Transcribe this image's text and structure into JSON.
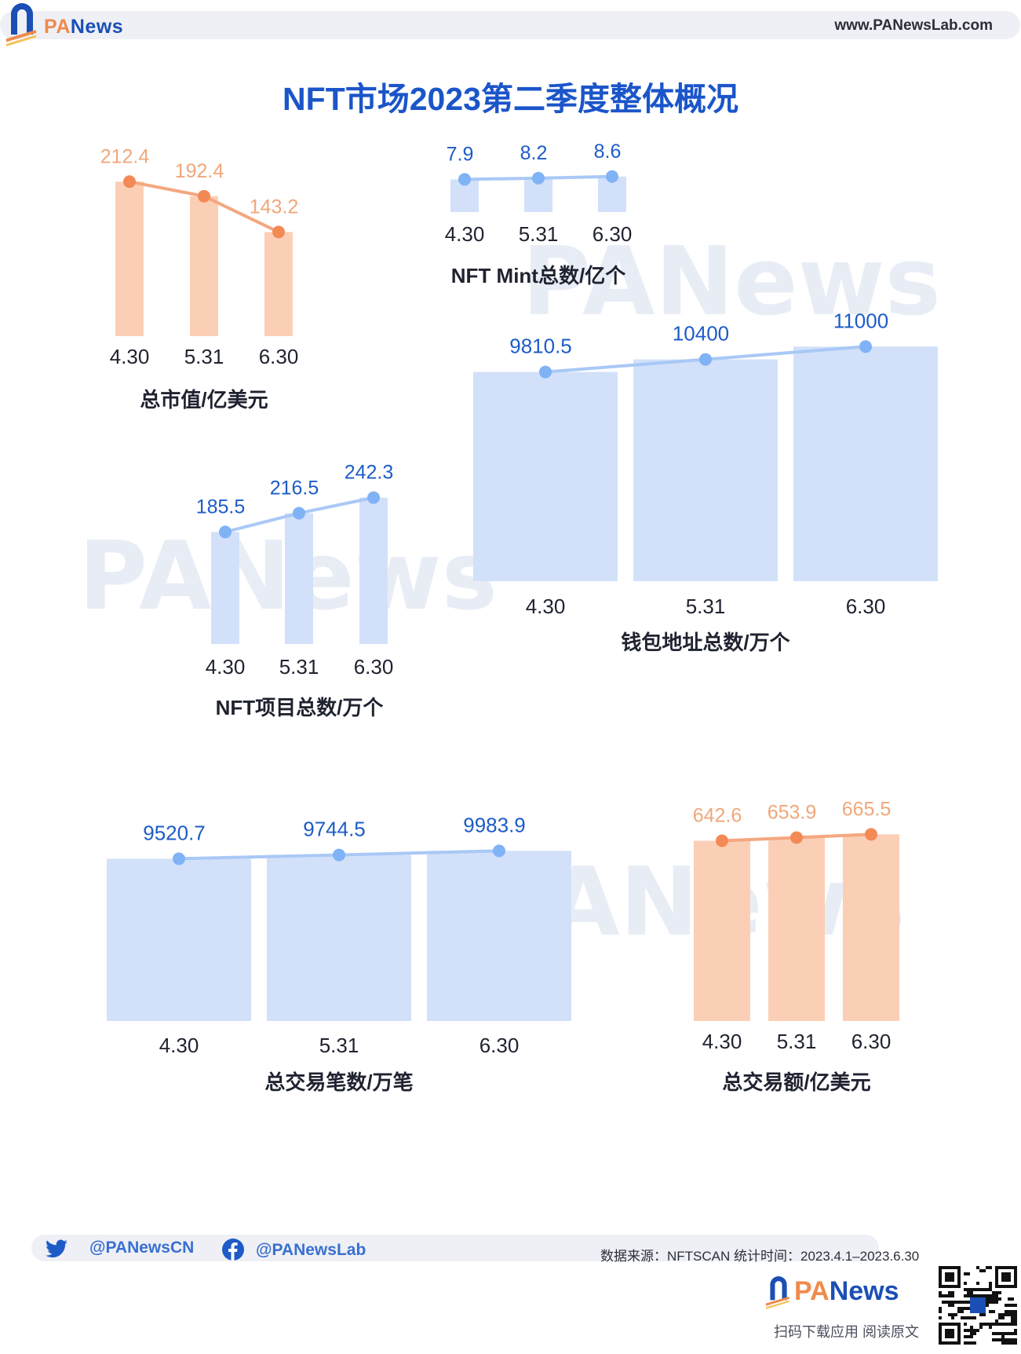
{
  "header": {
    "brand_prefix": "PA",
    "brand_suffix": "News",
    "url": "www.PANewsLab.com"
  },
  "title": "NFT市场2023第二季度整体概况",
  "watermark": "PANews",
  "colors": {
    "blue_bar": "#d2e1f9",
    "blue_line": "#a9c8f6",
    "blue_dot": "#80b2f6",
    "blue_label": "#1d5cc7",
    "orange_bar": "#fbcfb6",
    "orange_line": "#f4a77f",
    "orange_dot": "#f38a55",
    "orange_label": "#f0a77a",
    "axis_text": "#1f2330"
  },
  "chart_data": [
    {
      "id": "market_cap",
      "type": "bar",
      "title": "总市值/亿美元",
      "theme": "orange",
      "categories": [
        "4.30",
        "5.31",
        "6.30"
      ],
      "values": [
        212.4,
        192.4,
        143.2
      ],
      "value_labels": [
        "212.4",
        "192.4",
        "143.2"
      ],
      "overlay_line": true
    },
    {
      "id": "nft_mint",
      "type": "bar",
      "title": "NFT Mint总数/亿个",
      "theme": "blue",
      "categories": [
        "4.30",
        "5.31",
        "6.30"
      ],
      "values": [
        7.9,
        8.2,
        8.6
      ],
      "value_labels": [
        "7.9",
        "8.2",
        "8.6"
      ],
      "overlay_line": true
    },
    {
      "id": "wallets",
      "type": "bar",
      "title": "钱包地址总数/万个",
      "theme": "blue",
      "categories": [
        "4.30",
        "5.31",
        "6.30"
      ],
      "values": [
        9810.5,
        10400,
        11000
      ],
      "value_labels": [
        "9810.5",
        "10400",
        "11000"
      ],
      "overlay_line": true
    },
    {
      "id": "projects",
      "type": "bar",
      "title": "NFT项目总数/万个",
      "theme": "blue",
      "categories": [
        "4.30",
        "5.31",
        "6.30"
      ],
      "values": [
        185.5,
        216.5,
        242.3
      ],
      "value_labels": [
        "185.5",
        "216.5",
        "242.3"
      ],
      "overlay_line": true
    },
    {
      "id": "tx_count",
      "type": "bar",
      "title": "总交易笔数/万笔",
      "theme": "blue",
      "categories": [
        "4.30",
        "5.31",
        "6.30"
      ],
      "values": [
        9520.7,
        9744.5,
        9983.9
      ],
      "value_labels": [
        "9520.7",
        "9744.5",
        "9983.9"
      ],
      "overlay_line": true
    },
    {
      "id": "tx_volume",
      "type": "bar",
      "title": "总交易额/亿美元",
      "theme": "orange",
      "categories": [
        "4.30",
        "5.31",
        "6.30"
      ],
      "values": [
        642.6,
        653.9,
        665.5
      ],
      "value_labels": [
        "642.6",
        "653.9",
        "665.5"
      ],
      "overlay_line": true
    }
  ],
  "footer": {
    "twitter_handle": "@PANewsCN",
    "facebook_handle": "@PANewsLab",
    "source": "数据来源：NFTSCAN 统计时间：2023.4.1–2023.6.30",
    "brand_prefix": "PA",
    "brand_suffix": "News",
    "app_note": "扫码下载应用 阅读原文"
  }
}
